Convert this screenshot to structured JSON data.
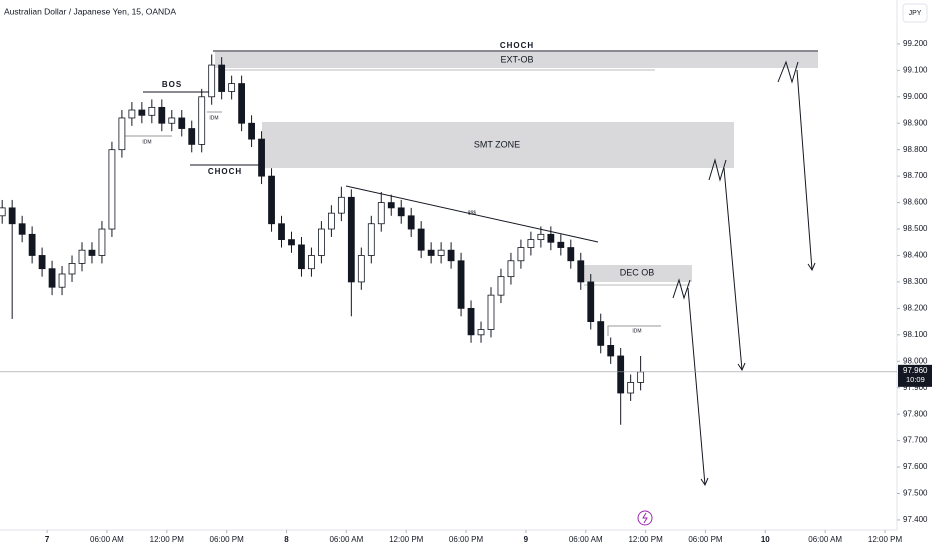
{
  "chart_data": {
    "type": "candlestick",
    "title": "Australian Dollar / Japanese Yen, 15, OANDA",
    "currency_button": "JPY",
    "last_price": {
      "value": 97.96,
      "label": "97.960"
    },
    "countdown": "10:09",
    "up_color": "#ffffff",
    "down_color": "#131722",
    "annotations": {
      "choch_top": "CHOCH",
      "ext_ob": "EXT-OB",
      "smt_zone": "SMT ZONE",
      "dec_ob": "DEC OB",
      "bos": "BOS",
      "idm_left": "IDM",
      "idm_top": "IDM",
      "idm_right": "IDM",
      "choch_low": "CHOCH",
      "liquidity": "$$$"
    },
    "x": [
      -4.5,
      -3.5,
      -2.5,
      -1.5,
      -0.5,
      0.5,
      1.5,
      2.5,
      3.5,
      4.5,
      5.5,
      6.5,
      7.5,
      8.5,
      9.5,
      10.5,
      11.5,
      12.5,
      13.5,
      14.5,
      15.5,
      16.5,
      17.5,
      18.5,
      19.5,
      20.5,
      21.5,
      22.5,
      23.5,
      24.5,
      25.5,
      26.5,
      27.5,
      28.5,
      29.5,
      30.5,
      31.5,
      32.5,
      33.5,
      34.5,
      35.5,
      36.5,
      37.5,
      38.5,
      39.5,
      40.5,
      41.5,
      42.5,
      43.5,
      44.5,
      45.5,
      46.5,
      47.5,
      48.5,
      49.5,
      50.5,
      51.5,
      52.5,
      53.5,
      54.5,
      55.5,
      56.5,
      57.5,
      58.5,
      59.5
    ],
    "open": [
      98.55,
      98.58,
      98.52,
      98.48,
      98.4,
      98.35,
      98.28,
      98.33,
      98.37,
      98.42,
      98.4,
      98.5,
      98.8,
      98.92,
      98.95,
      98.93,
      98.96,
      98.9,
      98.92,
      98.88,
      98.82,
      99.0,
      99.12,
      99.02,
      99.05,
      98.9,
      98.84,
      98.7,
      98.52,
      98.46,
      98.44,
      98.35,
      98.4,
      98.5,
      98.56,
      98.62,
      98.3,
      98.4,
      98.52,
      98.6,
      98.58,
      98.55,
      98.5,
      98.42,
      98.4,
      98.42,
      98.38,
      98.2,
      98.1,
      98.12,
      98.25,
      98.32,
      98.38,
      98.43,
      98.46,
      98.48,
      98.45,
      98.43,
      98.38,
      98.3,
      98.15,
      98.06,
      98.02,
      97.88,
      97.92
    ],
    "high": [
      98.61,
      98.61,
      98.55,
      98.51,
      98.43,
      98.38,
      98.36,
      98.4,
      98.45,
      98.45,
      98.53,
      98.83,
      98.95,
      98.98,
      98.98,
      98.99,
      98.99,
      98.95,
      98.95,
      98.91,
      99.03,
      99.16,
      99.15,
      99.08,
      99.08,
      98.93,
      98.87,
      98.73,
      98.55,
      98.49,
      98.47,
      98.43,
      98.53,
      98.59,
      98.66,
      98.65,
      98.43,
      98.55,
      98.64,
      98.63,
      98.61,
      98.58,
      98.53,
      98.45,
      98.45,
      98.45,
      98.41,
      98.23,
      98.15,
      98.28,
      98.35,
      98.41,
      98.46,
      98.49,
      98.51,
      98.51,
      98.48,
      98.46,
      98.41,
      98.33,
      98.18,
      98.09,
      98.05,
      97.95,
      98.02
    ],
    "low": [
      98.52,
      98.16,
      98.45,
      98.37,
      98.32,
      98.25,
      98.25,
      98.3,
      98.34,
      98.37,
      98.37,
      98.47,
      98.77,
      98.89,
      98.9,
      98.9,
      98.87,
      98.87,
      98.85,
      98.79,
      98.79,
      98.97,
      98.99,
      98.99,
      98.87,
      98.81,
      98.67,
      98.49,
      98.43,
      98.41,
      98.32,
      98.32,
      98.37,
      98.47,
      98.53,
      98.17,
      98.27,
      98.37,
      98.49,
      98.55,
      98.52,
      98.47,
      98.39,
      98.37,
      98.37,
      98.35,
      98.17,
      98.07,
      98.07,
      98.09,
      98.22,
      98.29,
      98.35,
      98.4,
      98.43,
      98.42,
      98.4,
      98.35,
      98.27,
      98.12,
      98.03,
      97.99,
      97.76,
      97.85,
      97.89
    ],
    "close": [
      98.58,
      98.52,
      98.48,
      98.4,
      98.35,
      98.28,
      98.33,
      98.37,
      98.42,
      98.4,
      98.5,
      98.8,
      98.92,
      98.95,
      98.93,
      98.96,
      98.9,
      98.92,
      98.88,
      98.82,
      99.0,
      99.12,
      99.02,
      99.05,
      98.9,
      98.84,
      98.7,
      98.52,
      98.46,
      98.44,
      98.35,
      98.4,
      98.5,
      98.56,
      98.62,
      98.3,
      98.4,
      98.52,
      98.6,
      98.58,
      98.55,
      98.5,
      98.42,
      98.4,
      98.42,
      98.38,
      98.2,
      98.1,
      98.12,
      98.25,
      98.32,
      98.38,
      98.43,
      98.46,
      98.48,
      98.45,
      98.43,
      98.38,
      98.3,
      98.15,
      98.06,
      98.02,
      97.88,
      97.92,
      97.96
    ],
    "xlim": [
      -4.72,
      85.2
    ],
    "xticks": [
      {
        "value": 0,
        "label": "7"
      },
      {
        "value": 6,
        "label": "06:00 AM"
      },
      {
        "value": 12,
        "label": "12:00 PM"
      },
      {
        "value": 18,
        "label": "06:00 PM"
      },
      {
        "value": 24,
        "label": "8"
      },
      {
        "value": 30,
        "label": "06:00 AM"
      },
      {
        "value": 36,
        "label": "12:00 PM"
      },
      {
        "value": 42,
        "label": "06:00 PM"
      },
      {
        "value": 48,
        "label": "9"
      },
      {
        "value": 54,
        "label": "06:00 AM"
      },
      {
        "value": 60,
        "label": "12:00 PM"
      },
      {
        "value": 66,
        "label": "06:00 PM"
      },
      {
        "value": 72,
        "label": "10"
      },
      {
        "value": 78,
        "label": "06:00 AM"
      },
      {
        "value": 84,
        "label": "12:00 PM"
      }
    ],
    "ylim": [
      97.362,
      99.366
    ],
    "yticks": [
      {
        "value": 97.4,
        "label": "97.400"
      },
      {
        "value": 97.5,
        "label": "97.500"
      },
      {
        "value": 97.6,
        "label": "97.600"
      },
      {
        "value": 97.7,
        "label": "97.700"
      },
      {
        "value": 97.8,
        "label": "97.800"
      },
      {
        "value": 97.9,
        "label": "97.900"
      },
      {
        "value": 98.0,
        "label": "98.000"
      },
      {
        "value": 98.1,
        "label": "98.100"
      },
      {
        "value": 98.2,
        "label": "98.200"
      },
      {
        "value": 98.3,
        "label": "98.300"
      },
      {
        "value": 98.4,
        "label": "98.400"
      },
      {
        "value": 98.5,
        "label": "98.500"
      },
      {
        "value": 98.6,
        "label": "98.600"
      },
      {
        "value": 98.7,
        "label": "98.700"
      },
      {
        "value": 98.8,
        "label": "98.800"
      },
      {
        "value": 98.9,
        "label": "98.900"
      },
      {
        "value": 99.0,
        "label": "99.000"
      },
      {
        "value": 99.1,
        "label": "99.100"
      },
      {
        "value": 99.2,
        "label": "99.200"
      }
    ],
    "grid": false
  }
}
